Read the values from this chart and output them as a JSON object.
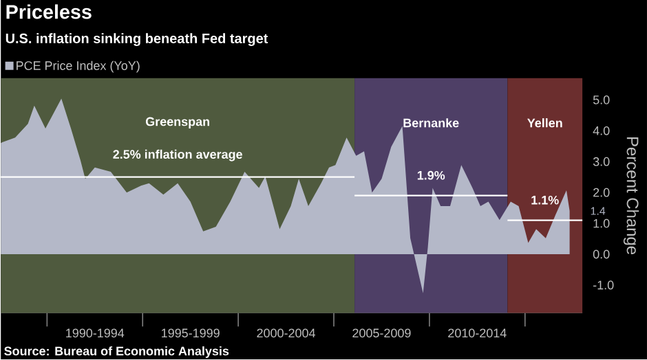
{
  "chart_data": {
    "type": "area",
    "title": "Priceless",
    "subtitle": "U.S. inflation sinking beneath Fed target",
    "ylabel": "Percent Change",
    "legend": "top left",
    "x": [
      "1987-08",
      "1987-09",
      "1988-05",
      "1989-01",
      "1989-05",
      "1989-12",
      "1990-10",
      "1991-04",
      "1991-10",
      "1992-01",
      "1992-07",
      "1993-05",
      "1994-03",
      "1994-12",
      "1995-05",
      "1996-02",
      "1996-11",
      "1997-07",
      "1998-03",
      "1998-11",
      "1999-08",
      "2000-05",
      "2001-02",
      "2001-06",
      "2002-03",
      "2002-10",
      "2003-03",
      "2003-09",
      "2004-05",
      "2004-10",
      "2005-02",
      "2005-09",
      "2006-03",
      "2006-08",
      "2007-01",
      "2007-07",
      "2008-01",
      "2008-08",
      "2009-01",
      "2009-09",
      "2009-12",
      "2010-03",
      "2010-08",
      "2011-02",
      "2011-09",
      "2012-04",
      "2012-09",
      "2013-02",
      "2013-09",
      "2014-04",
      "2014-09",
      "2015-03",
      "2015-08",
      "2016-02",
      "2016-08",
      "2017-03",
      "2017-05"
    ],
    "series": [
      {
        "name": "PCE Price Index (YoY)",
        "color": "#b4b8c8",
        "values": [
          3.6,
          3.63,
          3.78,
          4.22,
          4.81,
          4.07,
          5.04,
          4.07,
          3.04,
          2.44,
          2.81,
          2.67,
          2.0,
          2.22,
          2.3,
          1.93,
          2.3,
          1.7,
          0.74,
          0.89,
          1.7,
          2.67,
          2.15,
          2.52,
          0.81,
          1.56,
          2.44,
          1.56,
          2.3,
          2.81,
          2.89,
          3.78,
          3.19,
          3.33,
          2.0,
          2.44,
          3.48,
          4.15,
          0.52,
          -1.26,
          0.22,
          2.15,
          1.56,
          1.56,
          2.89,
          2.15,
          1.56,
          1.7,
          1.11,
          1.7,
          1.56,
          0.37,
          0.81,
          0.52,
          1.26,
          2.07,
          1.4
        ]
      }
    ],
    "xlim": [
      "1987-08",
      "2018-01"
    ],
    "xticks": [
      {
        "value": "1990-01",
        "label": null
      },
      {
        "value": "1992-07",
        "label": "1990-1994"
      },
      {
        "value": "1995-01",
        "label": null
      },
      {
        "value": "1997-07",
        "label": "1995-1999"
      },
      {
        "value": "2000-01",
        "label": null
      },
      {
        "value": "2002-07",
        "label": "2000-2004"
      },
      {
        "value": "2005-01",
        "label": null
      },
      {
        "value": "2007-07",
        "label": "2005-2009"
      },
      {
        "value": "2010-01",
        "label": null
      },
      {
        "value": "2012-07",
        "label": "2010-2014"
      },
      {
        "value": "2015-01",
        "label": null
      }
    ],
    "ylim": [
      -1.9,
      5.7
    ],
    "yticks": [
      {
        "value": -1,
        "label": "-1.0"
      },
      {
        "value": 0,
        "label": "0.0"
      },
      {
        "value": 1,
        "label": "1.0"
      },
      {
        "value": 2,
        "label": "2.0"
      },
      {
        "value": 3,
        "label": "3.0"
      },
      {
        "value": 4,
        "label": "4.0"
      },
      {
        "value": 5,
        "label": "5.0"
      }
    ],
    "bands": [
      {
        "axis": "x",
        "from": "1987-08",
        "to": "2006-02",
        "label": "Greenspan",
        "color": "#4f5a3e"
      },
      {
        "axis": "x",
        "from": "2006-02",
        "to": "2014-02",
        "label": "Bernanke",
        "color": "#4e3f66"
      },
      {
        "axis": "x",
        "from": "2014-02",
        "to": "2018-01",
        "label": "Yellen",
        "color": "#6b2e2e"
      }
    ],
    "ref_lines": [
      {
        "axis": "y",
        "value": 2.5,
        "label": "2.5% inflation average",
        "color": "#ffffff"
      },
      {
        "axis": "y",
        "value": 1.9,
        "label": "1.9%",
        "color": "#ffffff"
      },
      {
        "axis": "y",
        "value": 1.1,
        "label": "1.1%",
        "color": "#ffffff"
      }
    ],
    "annotations": [
      {
        "text": "1.4",
        "x": "2017-05",
        "y": 1.4
      },
      "Source: Bureau of Economic Analysis"
    ]
  }
}
